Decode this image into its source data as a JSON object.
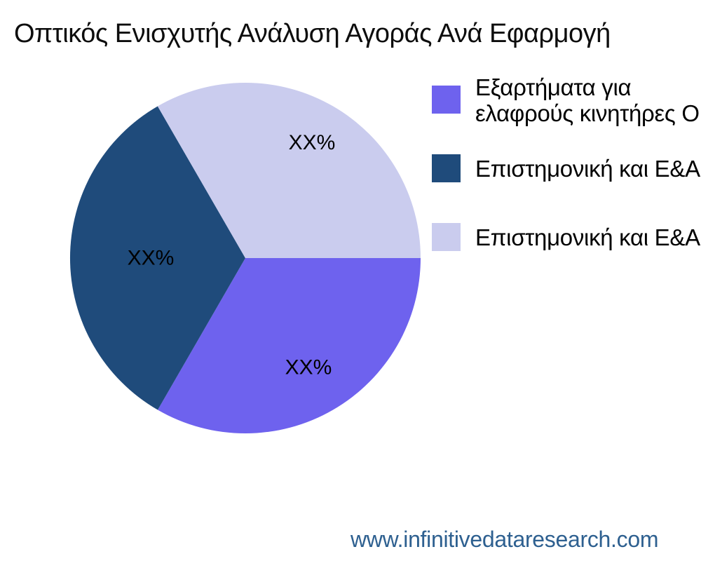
{
  "title": "Οπτικός Ενισχυτής Ανάλυση Αγοράς Ανά Εφαρμογή",
  "legend": {
    "items": [
      {
        "lines": [
          "Εξαρτήματα για",
          "ελαφρούς κινητήρες Ο"
        ],
        "color": "#6E62EE"
      },
      {
        "lines": [
          "Επιστημονική και Ε&Α"
        ],
        "color": "#1F4B7B"
      },
      {
        "lines": [
          "Επιστημονική και Ε&Α"
        ],
        "color": "#CACCEE"
      }
    ]
  },
  "footer": {
    "url_text": "www.infinitivedataresearch.com",
    "color": "#2E6090"
  },
  "chart_data": {
    "type": "pie",
    "title": "Οπτικός Ενισχυτής Ανάλυση Αγοράς Ανά Εφαρμογή",
    "labels": [
      "Εξαρτήματα για ελαφρούς κινητήρες Ο",
      "Επιστημονική και Ε&Α",
      "Επιστημονική και Ε&Α"
    ],
    "values": [
      33.33,
      33.33,
      33.34
    ],
    "slice_labels": [
      "XX%",
      "XX%",
      "XX%"
    ],
    "colors": [
      "#6E62EE",
      "#1F4B7B",
      "#CACCEE"
    ],
    "start_angle_deg": 0,
    "direction": "clockwise",
    "legend_position": "right",
    "background": "#ffffff"
  }
}
